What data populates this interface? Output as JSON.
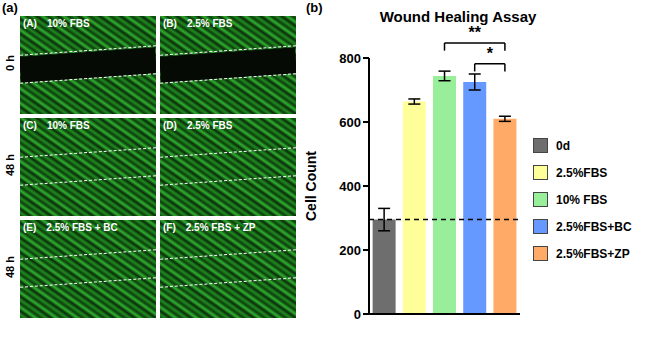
{
  "chart_data": {
    "type": "bar",
    "panel_label": "(b)",
    "title": "Wound Healing Assay",
    "y_label": "Cell Count",
    "categories": [
      "0d",
      "2.5%FBS",
      "10% FBS",
      "2.5%FBS+BC",
      "2.5%FBS+ZP"
    ],
    "values": [
      295,
      664,
      744,
      725,
      610
    ],
    "errors": [
      35,
      8,
      15,
      25,
      8
    ],
    "colors": [
      "#6e6e6e",
      "#ffff99",
      "#99ee99",
      "#6699ff",
      "#ffaa66"
    ],
    "ylim": [
      0,
      800
    ],
    "yticks": [
      0,
      200,
      400,
      600,
      800
    ],
    "reference_line": 295,
    "legend": "right",
    "tick_labels": "y",
    "annotations": [
      {
        "text": "**",
        "from": "10% FBS",
        "to": "2.5%FBS+ZP"
      },
      {
        "text": "*",
        "from": "2.5%FBS+BC",
        "to": "2.5%FBS+ZP"
      }
    ]
  },
  "image_panels": {
    "panel_label": "(a)",
    "rows": [
      "0 h",
      "48 h",
      "48 h"
    ],
    "images": [
      {
        "tag": "(A)",
        "caption": "10% FBS"
      },
      {
        "tag": "(B)",
        "caption": "2.5% FBS"
      },
      {
        "tag": "(C)",
        "caption": "10% FBS"
      },
      {
        "tag": "(D)",
        "caption": "2.5% FBS"
      },
      {
        "tag": "(E)",
        "caption": "2.5% FBS + BC"
      },
      {
        "tag": "(F)",
        "caption": "2.5% FBS + ZP"
      }
    ]
  }
}
